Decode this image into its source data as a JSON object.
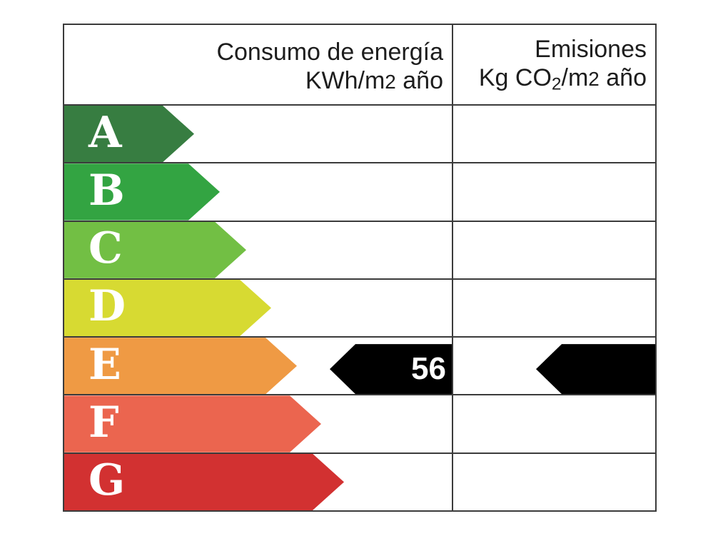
{
  "header": {
    "consumption": {
      "line1": "Consumo de energía",
      "unit_prefix": "KWh/m",
      "unit_exp": "2",
      "unit_suffix": " año"
    },
    "emissions": {
      "line1": "Emisiones",
      "unit_prefix": "Kg CO",
      "unit_sub": "2",
      "unit_mid": "/m",
      "unit_exp": "2",
      "unit_suffix": " año"
    }
  },
  "chart_data": {
    "type": "table",
    "columns": [
      "Consumo de energía KWh/m2 año",
      "Emisiones Kg CO2/m2 año"
    ],
    "ratings": [
      {
        "letter": "A",
        "color": "#377d41"
      },
      {
        "letter": "B",
        "color": "#33a442"
      },
      {
        "letter": "C",
        "color": "#72bf44"
      },
      {
        "letter": "D",
        "color": "#d7da32"
      },
      {
        "letter": "E",
        "color": "#ef9a44"
      },
      {
        "letter": "F",
        "color": "#eb654f"
      },
      {
        "letter": "G",
        "color": "#d23131"
      }
    ],
    "current": {
      "rating": "E",
      "consumption_value": "56",
      "emissions_value": null,
      "indicator_color": "#000000"
    },
    "layout_hints": {
      "grid": "on",
      "scale_arrow_direction": "right",
      "indicator_arrow_direction": "left",
      "indicator_row": "E"
    }
  },
  "colors": {
    "border": "#3b3b3b",
    "header_text": "#1d1d1d",
    "letter_text": "#ffffff",
    "indicator_value_text": "#ffffff",
    "background": "#ffffff"
  }
}
